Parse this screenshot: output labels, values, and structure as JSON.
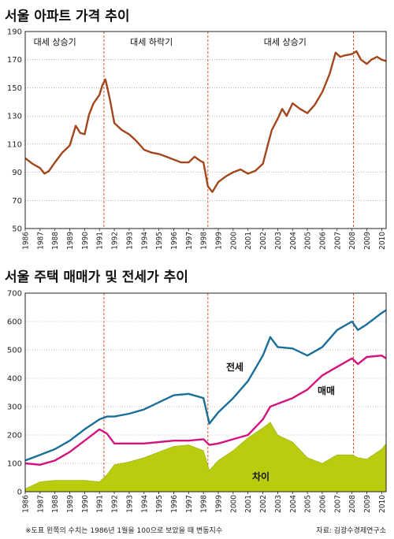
{
  "chart_data": [
    {
      "type": "line",
      "title": "서울 아파트 가격 추이",
      "ylim": [
        50,
        190
      ],
      "yticks": [
        50,
        70,
        90,
        110,
        130,
        150,
        170,
        190
      ],
      "x_ticks": [
        "1986",
        "1987",
        "1988",
        "1989",
        "1990",
        "1991",
        "1992",
        "1993",
        "1994",
        "1995",
        "1996",
        "1997",
        "1998",
        "1999",
        "2000",
        "2001",
        "2002",
        "2003",
        "2004",
        "2005",
        "2006",
        "2007",
        "2008",
        "2009",
        "2010"
      ],
      "phase_labels": [
        {
          "text": "대세 상승기",
          "at": 1988.0
        },
        {
          "text": "대세 하락기",
          "at": 1994.5
        },
        {
          "text": "대세 상승기",
          "at": 2003.5
        }
      ],
      "dividers": [
        1991.3,
        1998.3,
        2008.1
      ],
      "colors": {
        "line": "#a3461c",
        "divider": "#d9542b"
      },
      "series": [
        {
          "x": [
            1986.0,
            1986.5,
            1987.0,
            1987.3,
            1987.6,
            1988.0,
            1988.5,
            1989.0,
            1989.4,
            1989.7,
            1990.0,
            1990.3,
            1990.6,
            1991.0,
            1991.2,
            1991.4,
            1991.7,
            1992.0,
            1992.5,
            1993.0,
            1993.5,
            1994.0,
            1994.5,
            1995.0,
            1995.5,
            1996.0,
            1996.5,
            1997.0,
            1997.4,
            1997.8,
            1998.0,
            1998.3,
            1998.6,
            1999.0,
            1999.5,
            2000.0,
            2000.5,
            2001.0,
            2001.5,
            2002.0,
            2002.3,
            2002.6,
            2003.0,
            2003.3,
            2003.6,
            2004.0,
            2004.5,
            2005.0,
            2005.5,
            2006.0,
            2006.5,
            2006.9,
            2007.2,
            2007.5,
            2008.0,
            2008.3,
            2008.6,
            2009.0,
            2009.3,
            2009.7,
            2010.0,
            2010.3
          ],
          "y": [
            100,
            96,
            93,
            89,
            91,
            97,
            104,
            109,
            123,
            118,
            117,
            131,
            139,
            145,
            152,
            156,
            142,
            125,
            120,
            117,
            112,
            106,
            104,
            103,
            101,
            99,
            97,
            97,
            101,
            98,
            97,
            80,
            76,
            83,
            87,
            90,
            92,
            89,
            91,
            96,
            108,
            120,
            128,
            135,
            130,
            139,
            135,
            132,
            138,
            147,
            160,
            175,
            172,
            173,
            174,
            176,
            170,
            167,
            170,
            172,
            170,
            169
          ]
        }
      ]
    },
    {
      "type": "area",
      "title": "서울 주택 매매가 및 전세가 추이",
      "ylim": [
        0,
        700
      ],
      "yticks": [
        0,
        100,
        200,
        300,
        400,
        500,
        600,
        700
      ],
      "x_ticks": [
        "1986",
        "1987",
        "1988",
        "1989",
        "1990",
        "1991",
        "1992",
        "1993",
        "1994",
        "1995",
        "1996",
        "1997",
        "1998",
        "1999",
        "2000",
        "2001",
        "2002",
        "2003",
        "2004",
        "2005",
        "2006",
        "2007",
        "2008",
        "2009",
        "2010"
      ],
      "dividers": [
        1991.3,
        1998.3,
        2008.1
      ],
      "colors": {
        "jeonse": "#1a6f9a",
        "maemae": "#d4137f",
        "difference_fill": "#b9cc0e",
        "divider": "#d9542b"
      },
      "x": [
        1986.0,
        1987.0,
        1988.0,
        1989.0,
        1990.0,
        1991.0,
        1991.5,
        1992.0,
        1993.0,
        1994.0,
        1995.0,
        1996.0,
        1997.0,
        1998.0,
        1998.4,
        1999.0,
        2000.0,
        2001.0,
        2002.0,
        2002.5,
        2003.0,
        2004.0,
        2005.0,
        2006.0,
        2007.0,
        2008.0,
        2008.4,
        2009.0,
        2010.0,
        2010.3
      ],
      "series": [
        {
          "name": "전세",
          "values": [
            110,
            130,
            150,
            180,
            220,
            255,
            265,
            265,
            275,
            290,
            315,
            340,
            345,
            330,
            240,
            280,
            330,
            390,
            480,
            545,
            510,
            505,
            480,
            510,
            570,
            600,
            570,
            590,
            630,
            640
          ]
        },
        {
          "name": "매매",
          "values": [
            100,
            95,
            110,
            140,
            180,
            220,
            205,
            170,
            170,
            170,
            175,
            180,
            180,
            185,
            165,
            170,
            185,
            200,
            255,
            300,
            310,
            330,
            360,
            410,
            440,
            470,
            450,
            475,
            480,
            470
          ]
        },
        {
          "name": "차이",
          "values": [
            10,
            35,
            40,
            40,
            40,
            35,
            60,
            95,
            105,
            120,
            140,
            160,
            165,
            145,
            75,
            110,
            145,
            190,
            225,
            245,
            200,
            175,
            120,
            100,
            130,
            130,
            120,
            115,
            150,
            170
          ]
        }
      ]
    }
  ],
  "footnote": "※도표 왼쪽의 수치는 1986년 1월을 100으로 보았을 때 변동지수",
  "source": "자료: 김광수경제연구소"
}
